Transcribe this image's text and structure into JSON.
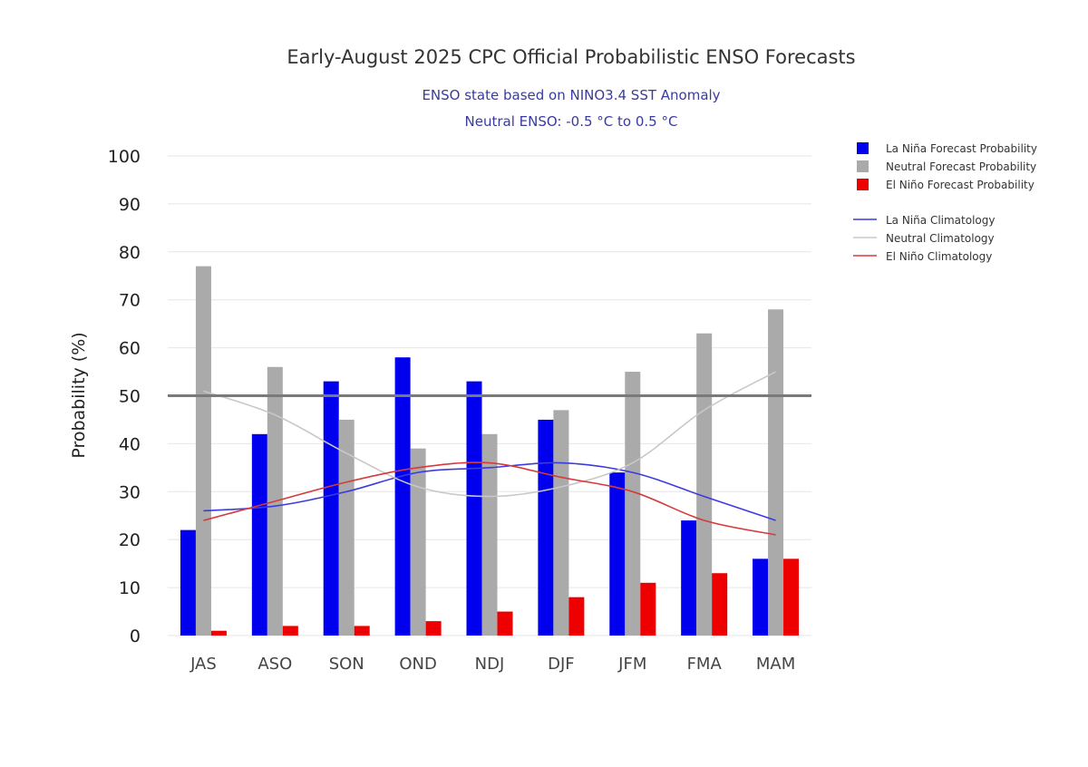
{
  "chart_data": {
    "type": "bar",
    "title": "Early-August 2025 CPC Official Probabilistic ENSO Forecasts",
    "subtitle_line1": "ENSO state based on NINO3.4 SST Anomaly",
    "subtitle_line2": "Neutral ENSO: -0.5 °C to 0.5 °C",
    "xlabel": "",
    "ylabel": "Probability (%)",
    "ylim": [
      0,
      100
    ],
    "yticks": [
      0,
      10,
      20,
      30,
      40,
      50,
      60,
      70,
      80,
      90,
      100
    ],
    "grid": true,
    "reference_line": 50,
    "legend_position": "right",
    "categories": [
      "JAS",
      "ASO",
      "SON",
      "OND",
      "NDJ",
      "DJF",
      "JFM",
      "FMA",
      "MAM"
    ],
    "series": [
      {
        "name": "La Niña Forecast Probability",
        "kind": "bar",
        "color": "#0000ee",
        "values": [
          22,
          42,
          53,
          58,
          53,
          45,
          34,
          24,
          16
        ]
      },
      {
        "name": "Neutral Forecast Probability",
        "kind": "bar",
        "color": "#aaaaaa",
        "values": [
          77,
          56,
          45,
          39,
          42,
          47,
          55,
          63,
          68
        ]
      },
      {
        "name": "El Niño Forecast Probability",
        "kind": "bar",
        "color": "#ee0000",
        "values": [
          1,
          2,
          2,
          3,
          5,
          8,
          11,
          13,
          16
        ]
      },
      {
        "name": "La Niña Climatology",
        "kind": "line",
        "color": "#3b3be0",
        "values": [
          26,
          27,
          30,
          34,
          35,
          36,
          34,
          29,
          24
        ]
      },
      {
        "name": "Neutral Climatology",
        "kind": "line",
        "color": "#c8c8c8",
        "values": [
          51,
          46,
          38,
          31,
          29,
          31,
          36,
          47,
          55
        ]
      },
      {
        "name": "El Niño Climatology",
        "kind": "line",
        "color": "#d63a3a",
        "values": [
          24,
          28,
          32,
          35,
          36,
          33,
          30,
          24,
          21
        ]
      }
    ]
  }
}
